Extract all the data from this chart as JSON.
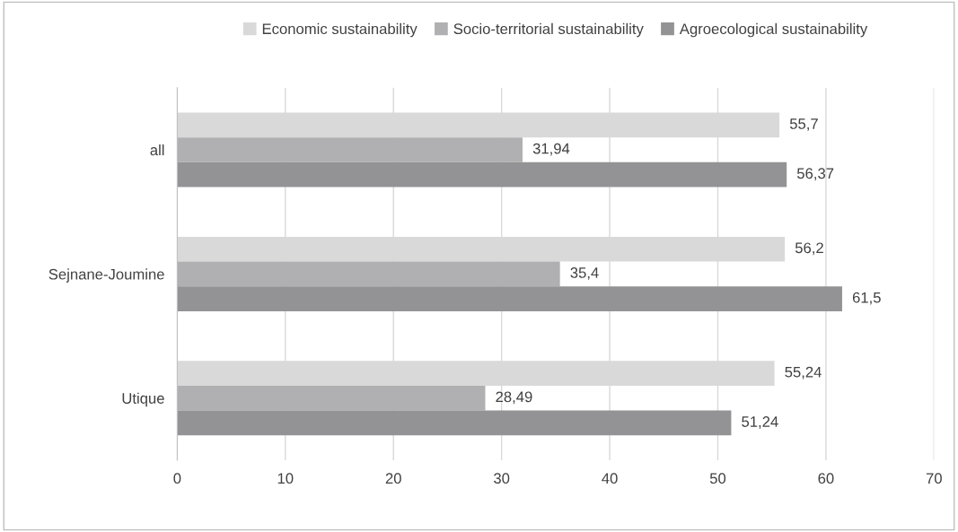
{
  "chart_data": {
    "type": "bar",
    "orientation": "horizontal",
    "categories": [
      "all",
      "Sejnane-Joumine",
      "Utique"
    ],
    "series": [
      {
        "name": "Economic sustainability",
        "color": "#d9d9d9",
        "values": [
          55.7,
          56.2,
          55.24
        ],
        "value_labels": [
          "55,7",
          "56,2",
          "55,24"
        ]
      },
      {
        "name": "Socio-territorial sustainability",
        "color": "#b0b0b2",
        "values": [
          31.94,
          35.4,
          28.49
        ],
        "value_labels": [
          "31,94",
          "35,4",
          "28,49"
        ]
      },
      {
        "name": "Agroecological sustainability",
        "color": "#939395",
        "values": [
          56.37,
          61.5,
          51.24
        ],
        "value_labels": [
          "56,37",
          "61,5",
          "51,24"
        ]
      }
    ],
    "xlim": [
      0,
      70
    ],
    "xticks": [
      0,
      10,
      20,
      30,
      40,
      50,
      60,
      70
    ],
    "grid": "x",
    "legend": "top"
  }
}
